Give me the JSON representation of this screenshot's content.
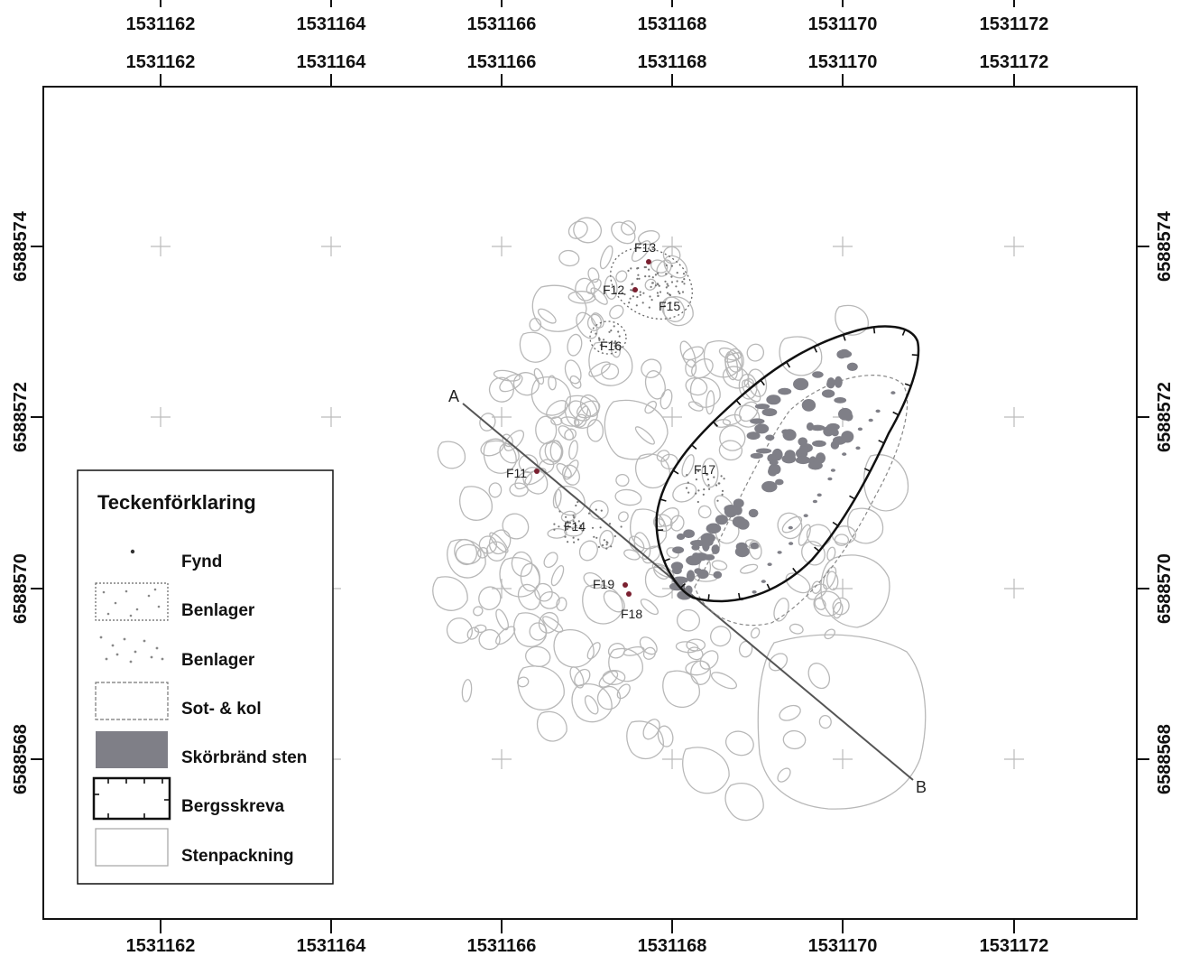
{
  "axes": {
    "x_ticks": [
      "1531162",
      "1531164",
      "1531166",
      "1531168",
      "1531170",
      "1531172"
    ],
    "y_ticks": [
      "6588574",
      "6588572",
      "6588570",
      "6588568"
    ]
  },
  "section_line": {
    "start_label": "A",
    "end_label": "B"
  },
  "features": [
    {
      "label": "F13",
      "find": true
    },
    {
      "label": "F12",
      "find": true
    },
    {
      "label": "F15",
      "find": false
    },
    {
      "label": "F16",
      "find": false
    },
    {
      "label": "F11",
      "find": true
    },
    {
      "label": "F17",
      "find": false
    },
    {
      "label": "F14",
      "find": false
    },
    {
      "label": "F19",
      "find": true
    },
    {
      "label": "F18",
      "find": true
    }
  ],
  "legend": {
    "title": "Teckenförklaring",
    "items": [
      {
        "label": "Fynd",
        "symbol": "dot"
      },
      {
        "label": "Benlager",
        "symbol": "dotted-box-points"
      },
      {
        "label": "Benlager",
        "symbol": "scattered-points"
      },
      {
        "label": "Sot- & kol",
        "symbol": "dashed-box"
      },
      {
        "label": "Skörbränd sten",
        "symbol": "filled-gray-box"
      },
      {
        "label": "Bergsskreva",
        "symbol": "hachured-box"
      },
      {
        "label": "Stenpackning",
        "symbol": "outline-box"
      }
    ]
  },
  "colors": {
    "frame": "#111111",
    "stone_outline": "#b8b8b8",
    "fire_cracked_stone": "#7f7f87",
    "find_dot": "#7a2030",
    "section_line": "#555555",
    "crevice": "#111111"
  }
}
